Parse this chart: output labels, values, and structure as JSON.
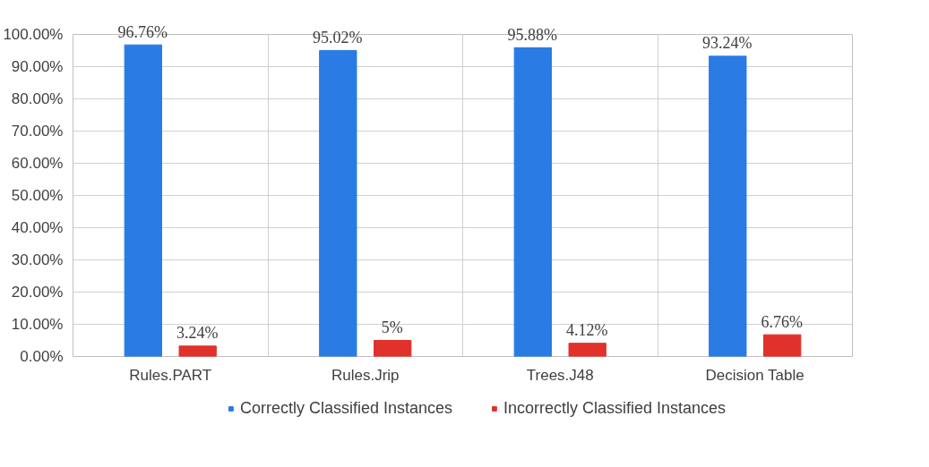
{
  "chart_data": {
    "type": "bar",
    "categories": [
      "Rules.PART",
      "Rules.Jrip",
      "Trees.J48",
      "Decision Table"
    ],
    "series": [
      {
        "name": "Correctly Classified Instances",
        "color": "#2a7be4",
        "values": [
          96.76,
          95.02,
          95.88,
          93.24
        ],
        "value_labels": [
          "96.76%",
          "95.02%",
          "95.88%",
          "93.24%"
        ]
      },
      {
        "name": "Incorrectly Classified Instances",
        "color": "#e0312b",
        "values": [
          3.24,
          5,
          4.12,
          6.76
        ],
        "value_labels": [
          "3.24%",
          "5%",
          "4.12%",
          "6.76%"
        ]
      }
    ],
    "ylim": [
      0,
      100
    ],
    "yticks": [
      {
        "value": 0,
        "label": "0.00%"
      },
      {
        "value": 10,
        "label": "10.00%"
      },
      {
        "value": 20,
        "label": "20.00%"
      },
      {
        "value": 30,
        "label": "30.00%"
      },
      {
        "value": 40,
        "label": "40.00%"
      },
      {
        "value": 50,
        "label": "50.00%"
      },
      {
        "value": 60,
        "label": "60.00%"
      },
      {
        "value": 70,
        "label": "70.00%"
      },
      {
        "value": 80,
        "label": "80.00%"
      },
      {
        "value": 90,
        "label": "90.00%"
      },
      {
        "value": 100,
        "label": "100.00%"
      }
    ],
    "grid": true,
    "legend": "bottom"
  }
}
